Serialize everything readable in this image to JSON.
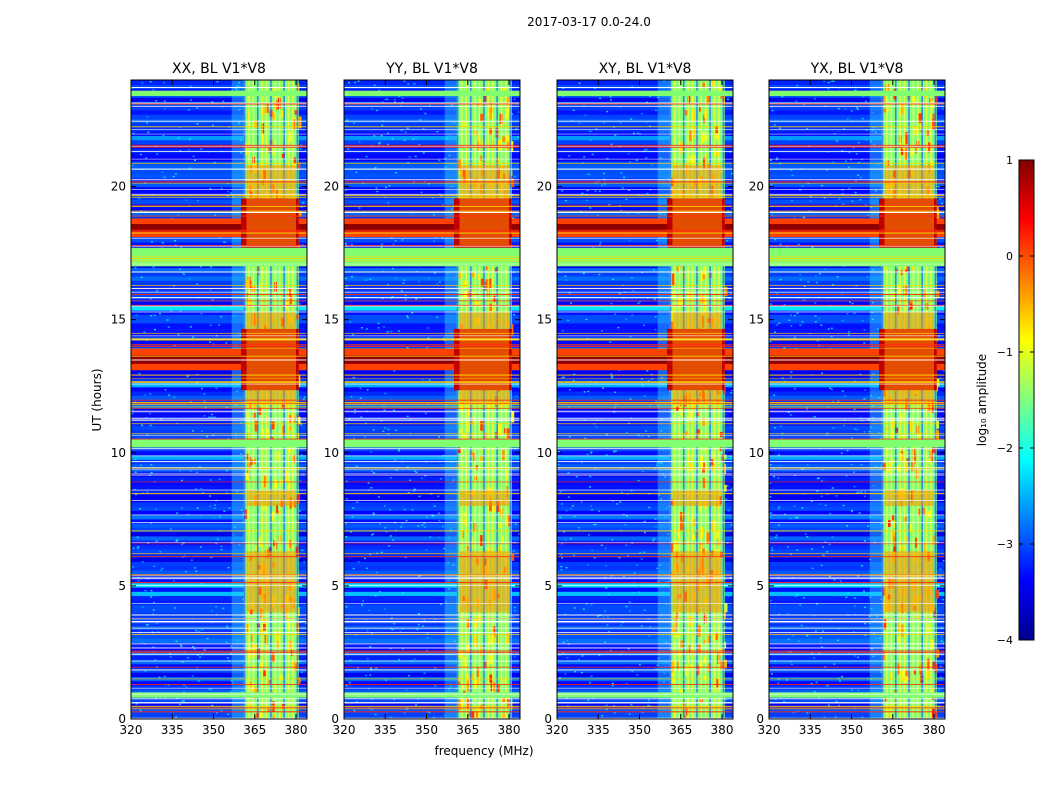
{
  "chart_data": {
    "type": "heatmap",
    "suptitle": "2017-03-17 0.0-24.0",
    "xlabel": "frequency (MHz)",
    "ylabel": "UT (hours)",
    "xlim": [
      320,
      384
    ],
    "ylim": [
      0,
      24
    ],
    "xticks": [
      320,
      335,
      350,
      365,
      380
    ],
    "yticks": [
      0,
      5,
      10,
      15,
      20
    ],
    "panels": [
      {
        "title": "XX, BL V1*V8"
      },
      {
        "title": "YY, BL V1*V8"
      },
      {
        "title": "XY, BL V1*V8"
      },
      {
        "title": "YX, BL V1*V8"
      }
    ],
    "colorbar": {
      "label": "log₁₀ amplitude",
      "range": [
        -4,
        1
      ],
      "ticks": [
        1,
        0,
        -1,
        -2,
        -3,
        -4
      ],
      "colormap": "jet"
    },
    "rfi_band_mhz": [
      361,
      381
    ],
    "saturated_band_mhz": [
      360,
      366
    ],
    "strong_events_ut": [
      {
        "start": 13.1,
        "end": 13.9,
        "level": 1
      },
      {
        "start": 18.1,
        "end": 18.8,
        "level": 1
      }
    ],
    "flagged_rows_ut": [
      {
        "start": 17.0,
        "end": 17.7
      },
      {
        "start": 10.2,
        "end": 10.5
      },
      {
        "start": 0.8,
        "end": 1.0
      },
      {
        "start": 23.4,
        "end": 23.6
      }
    ]
  }
}
